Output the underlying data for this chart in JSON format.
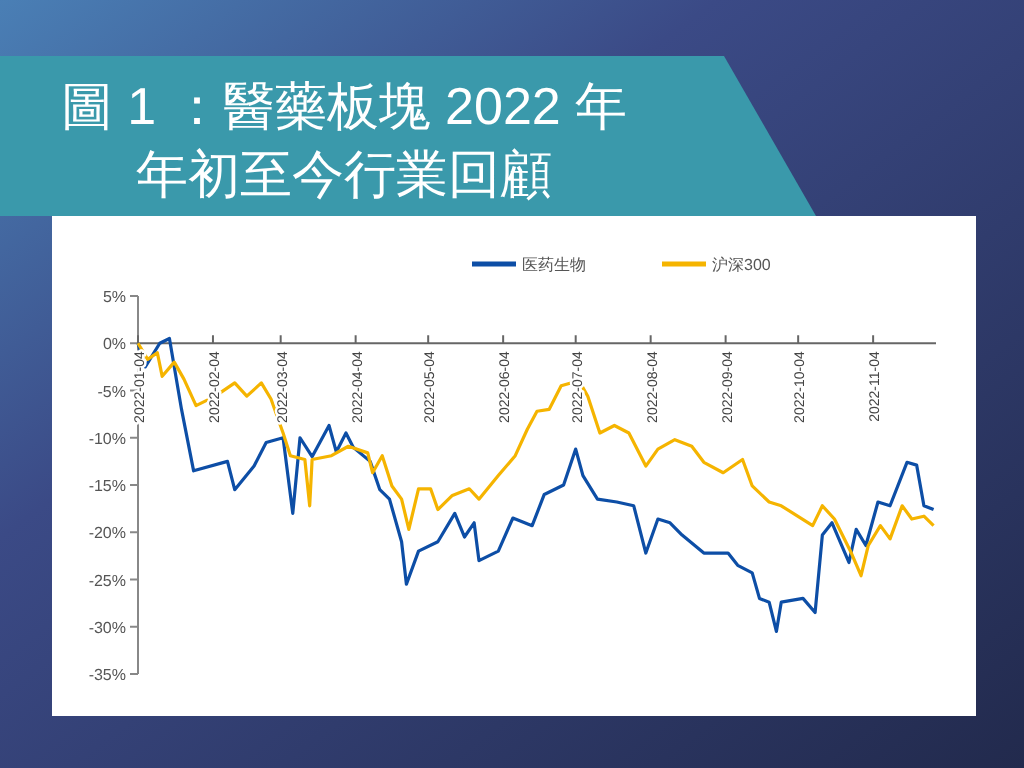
{
  "chart_data": {
    "type": "line",
    "title": "圖 1 ：醫藥板塊 2022 年年初至今行業回顧",
    "xlim": [
      "2022-01-04",
      "2022-11-30"
    ],
    "xticks": [
      "2022-01-04",
      "2022-02-04",
      "2022-03-04",
      "2022-04-04",
      "2022-05-04",
      "2022-06-04",
      "2022-07-04",
      "2022-08-04",
      "2022-09-04",
      "2022-10-04",
      "2022-11-04"
    ],
    "ylim": [
      -35,
      5
    ],
    "yticks": [
      {
        "value": 5,
        "label": "5%"
      },
      {
        "value": 0,
        "label": "0%"
      },
      {
        "value": -5,
        "label": "-5%"
      },
      {
        "value": -10,
        "label": "-10%"
      },
      {
        "value": -15,
        "label": "-15%"
      },
      {
        "value": -20,
        "label": "-20%"
      },
      {
        "value": -25,
        "label": "-25%"
      },
      {
        "value": -30,
        "label": "-30%"
      },
      {
        "value": -35,
        "label": "-35%"
      }
    ],
    "grid": false,
    "legend": "top",
    "marker": "none",
    "line_style": "solid",
    "series": [
      {
        "name": "医药生物",
        "color": "#0d4ea6",
        "x": [
          "2022-01-04",
          "2022-01-07",
          "2022-01-13",
          "2022-01-17",
          "2022-01-22",
          "2022-01-27",
          "2022-02-10",
          "2022-02-13",
          "2022-02-21",
          "2022-02-26",
          "2022-03-05",
          "2022-03-09",
          "2022-03-12",
          "2022-03-17",
          "2022-03-24",
          "2022-03-27",
          "2022-03-31",
          "2022-04-03",
          "2022-04-10",
          "2022-04-14",
          "2022-04-18",
          "2022-04-23",
          "2022-04-25",
          "2022-04-30",
          "2022-05-08",
          "2022-05-15",
          "2022-05-19",
          "2022-05-23",
          "2022-05-25",
          "2022-06-02",
          "2022-06-08",
          "2022-06-16",
          "2022-06-21",
          "2022-06-29",
          "2022-07-04",
          "2022-07-07",
          "2022-07-13",
          "2022-07-21",
          "2022-07-28",
          "2022-08-02",
          "2022-08-07",
          "2022-08-12",
          "2022-08-17",
          "2022-08-26",
          "2022-09-05",
          "2022-09-09",
          "2022-09-15",
          "2022-09-18",
          "2022-09-22",
          "2022-09-25",
          "2022-09-27",
          "2022-10-06",
          "2022-10-11",
          "2022-10-14",
          "2022-10-18",
          "2022-10-25",
          "2022-10-28",
          "2022-11-01",
          "2022-11-06",
          "2022-11-11",
          "2022-11-18",
          "2022-11-22",
          "2022-11-25",
          "2022-11-29"
        ],
        "values": [
          0,
          -2.5,
          0,
          0.5,
          -7,
          -13.5,
          -12.5,
          -15.5,
          -13,
          -10.5,
          -10,
          -18,
          -10,
          -12,
          -8.7,
          -11.5,
          -9.5,
          -11,
          -12.5,
          -15.5,
          -16.5,
          -21,
          -25.5,
          -22,
          -21,
          -18,
          -20.5,
          -19,
          -23,
          -22,
          -18.5,
          -19.3,
          -16,
          -15,
          -11.2,
          -14,
          -16.5,
          -16.8,
          -17.2,
          -22.2,
          -18.6,
          -19,
          -20.3,
          -22.2,
          -22.2,
          -23.5,
          -24.3,
          -27,
          -27.4,
          -30.5,
          -27.4,
          -27,
          -28.5,
          -20.3,
          -19,
          -23.2,
          -19.7,
          -21.4,
          -16.8,
          -17.2,
          -12.6,
          -12.9,
          -17.2,
          -17.6
        ]
      },
      {
        "name": "沪深300",
        "color": "#f5b400",
        "x": [
          "2022-01-04",
          "2022-01-08",
          "2022-01-12",
          "2022-01-14",
          "2022-01-19",
          "2022-01-23",
          "2022-01-28",
          "2022-02-05",
          "2022-02-13",
          "2022-02-18",
          "2022-02-24",
          "2022-02-28",
          "2022-03-05",
          "2022-03-08",
          "2022-03-14",
          "2022-03-16",
          "2022-03-17",
          "2022-03-25",
          "2022-04-01",
          "2022-04-09",
          "2022-04-11",
          "2022-04-15",
          "2022-04-19",
          "2022-04-23",
          "2022-04-26",
          "2022-04-30",
          "2022-05-05",
          "2022-05-08",
          "2022-05-14",
          "2022-05-21",
          "2022-05-25",
          "2022-06-02",
          "2022-06-09",
          "2022-06-14",
          "2022-06-18",
          "2022-06-23",
          "2022-06-28",
          "2022-07-02",
          "2022-07-05",
          "2022-07-09",
          "2022-07-14",
          "2022-07-20",
          "2022-07-26",
          "2022-08-02",
          "2022-08-07",
          "2022-08-14",
          "2022-08-21",
          "2022-08-26",
          "2022-09-03",
          "2022-09-11",
          "2022-09-15",
          "2022-09-22",
          "2022-09-27",
          "2022-10-10",
          "2022-10-14",
          "2022-10-19",
          "2022-10-26",
          "2022-10-30",
          "2022-11-02",
          "2022-11-07",
          "2022-11-11",
          "2022-11-16",
          "2022-11-20",
          "2022-11-25",
          "2022-11-29"
        ],
        "values": [
          0,
          -1.7,
          -1,
          -3.5,
          -2,
          -3.8,
          -6.6,
          -5.6,
          -4.2,
          -5.6,
          -4.2,
          -5.9,
          -9.5,
          -11.9,
          -12.3,
          -17.2,
          -12.3,
          -11.9,
          -10.9,
          -11.6,
          -13.7,
          -11.9,
          -15.1,
          -16.5,
          -19.7,
          -15.4,
          -15.4,
          -17.6,
          -16.1,
          -15.4,
          -16.5,
          -14,
          -11.9,
          -9.1,
          -7.2,
          -7,
          -4.5,
          -4.2,
          -3.8,
          -5.6,
          -9.5,
          -8.7,
          -9.5,
          -13,
          -11.2,
          -10.2,
          -10.9,
          -12.6,
          -13.7,
          -12.3,
          -15.1,
          -16.8,
          -17.2,
          -19.3,
          -17.2,
          -18.6,
          -22.2,
          -24.6,
          -21.4,
          -19.3,
          -20.7,
          -17.2,
          -18.6,
          -18.3,
          -19.3
        ]
      }
    ]
  }
}
